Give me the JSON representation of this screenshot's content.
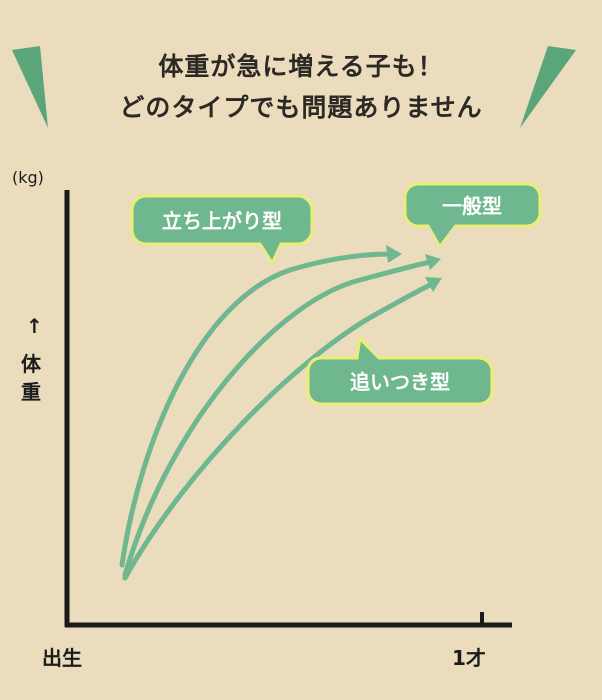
{
  "headline": {
    "line1": "体重が急に増える子も！",
    "line2": "どのタイプでも問題ありません"
  },
  "axes": {
    "unit": "(kg)",
    "y_arrow": "↑",
    "y_label": "体重",
    "x_start": "出生",
    "x_end": "1才"
  },
  "curves": [
    {
      "label": "立ち上がり型"
    },
    {
      "label": "一般型"
    },
    {
      "label": "追いつき型"
    }
  ],
  "colors": {
    "background": "#eadcbd",
    "curve": "#6fb78e",
    "bubble_fill": "#6fb78e",
    "bubble_outline": "#e9ef72",
    "accent_green": "#5aa67a",
    "axis": "#1a1a1a"
  }
}
